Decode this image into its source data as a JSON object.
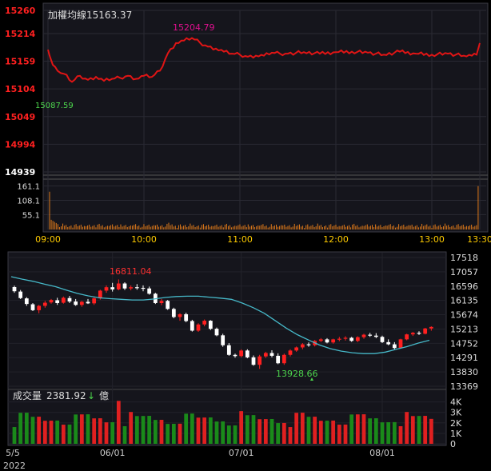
{
  "intraday": {
    "title": "加權均線",
    "value": "15163.37",
    "high_label": "15204.79",
    "low_label": "15087.59",
    "y_ticks": [
      "15260",
      "15214",
      "15159",
      "15104",
      "15049",
      "14994",
      "14939"
    ],
    "vol_ticks": [
      "161.1",
      "108.1",
      "55.1"
    ],
    "time_ticks": [
      "09:00",
      "10:00",
      "11:00",
      "12:00",
      "13:00",
      "13:30"
    ]
  },
  "daily": {
    "high_label": "16811.04",
    "low_label": "13928.66",
    "y_ticks": [
      "17518",
      "17057",
      "16596",
      "16135",
      "15674",
      "15213",
      "14752",
      "14291",
      "13830",
      "13369"
    ],
    "volume_label": "成交量",
    "volume_value": "2381.92",
    "volume_arrow": "↓",
    "volume_unit": "億",
    "vol_ticks": [
      "4K",
      "3K",
      "2K",
      "1K",
      "0"
    ],
    "date_ticks": [
      "5/5",
      "06/01",
      "07/01",
      "08/01"
    ],
    "year": "2022"
  },
  "colors": {
    "up": "#ff2020",
    "down": "#ffffff",
    "ma": "#46b8c8",
    "vol_up": "#e02020",
    "vol_down": "#1a8a1a",
    "high_label": "#e0108f",
    "low_label": "#4cd44c",
    "intraday_vol": "#e07a1a"
  },
  "chart_data": [
    {
      "type": "line",
      "title": "加權均線 15163.37",
      "x_range": [
        "09:00",
        "13:30"
      ],
      "ylim": [
        14939,
        15260
      ],
      "y_ticks": [
        15260,
        15214,
        15159,
        15104,
        15049,
        14994,
        14939
      ],
      "series": [
        {
          "x": [
            "09:00",
            "09:01",
            "09:03",
            "09:06",
            "09:10",
            "09:15",
            "09:20",
            "09:25",
            "09:30",
            "09:35",
            "09:40",
            "09:45",
            "09:50",
            "09:55",
            "10:00",
            "10:05",
            "10:10",
            "10:15",
            "10:20",
            "10:25",
            "10:30",
            "10:35",
            "10:40",
            "10:45",
            "10:50",
            "10:55",
            "11:00",
            "11:05",
            "11:10",
            "11:15",
            "11:20",
            "11:25",
            "11:30",
            "11:40",
            "11:50",
            "12:00",
            "12:10",
            "12:20",
            "12:30",
            "12:40",
            "12:50",
            "13:00",
            "13:10",
            "13:20",
            "13:25",
            "13:28",
            "13:30"
          ],
          "values": [
            15182,
            15170,
            15152,
            15140,
            15134,
            15118,
            15130,
            15122,
            15128,
            15120,
            15124,
            15126,
            15130,
            15124,
            15130,
            15128,
            15140,
            15175,
            15195,
            15200,
            15205,
            15196,
            15188,
            15184,
            15178,
            15174,
            15172,
            15168,
            15170,
            15170,
            15176,
            15174,
            15174,
            15177,
            15174,
            15177,
            15178,
            15176,
            15172,
            15178,
            15174,
            15172,
            15174,
            15170,
            15170,
            15172,
            15195
          ]
        }
      ],
      "volume": {
        "ticks": [
          161.1,
          108.1,
          55.1
        ],
        "note": "spikes at open (~140) and close (~161), otherwise ~5-20"
      }
    },
    {
      "type": "candlestick",
      "x_range": [
        "5/5",
        "08/01+"
      ],
      "ylim": [
        13369,
        17518
      ],
      "y_ticks": [
        17518,
        17057,
        16596,
        16135,
        15674,
        15213,
        14752,
        14291,
        13830,
        13369
      ],
      "annotations": [
        {
          "text": "16811.04",
          "kind": "high"
        },
        {
          "text": "13928.66",
          "kind": "low"
        }
      ],
      "ohlc": [
        [
          16565,
          16610,
          16380,
          16430
        ],
        [
          16420,
          16470,
          16180,
          16210
        ],
        [
          16200,
          16240,
          15960,
          16020
        ],
        [
          16010,
          16050,
          15790,
          15820
        ],
        [
          15820,
          15990,
          15720,
          15960
        ],
        [
          15960,
          16120,
          15900,
          16060
        ],
        [
          16070,
          16180,
          16030,
          16150
        ],
        [
          16140,
          16220,
          15990,
          16050
        ],
        [
          16060,
          16260,
          16030,
          16220
        ],
        [
          16210,
          16280,
          16050,
          16100
        ],
        [
          16100,
          16180,
          15960,
          15990
        ],
        [
          15990,
          16120,
          15930,
          16090
        ],
        [
          16090,
          16180,
          16020,
          16040
        ],
        [
          16040,
          16230,
          15990,
          16200
        ],
        [
          16200,
          16480,
          16160,
          16450
        ],
        [
          16450,
          16620,
          16380,
          16560
        ],
        [
          16560,
          16700,
          16420,
          16490
        ],
        [
          16490,
          16811,
          16460,
          16680
        ],
        [
          16680,
          16720,
          16470,
          16520
        ],
        [
          16520,
          16620,
          16460,
          16560
        ],
        [
          16560,
          16660,
          16480,
          16540
        ],
        [
          16540,
          16620,
          16430,
          16520
        ],
        [
          16520,
          16580,
          16320,
          16350
        ],
        [
          16350,
          16380,
          16020,
          16050
        ],
        [
          16050,
          16180,
          15980,
          16120
        ],
        [
          16120,
          16150,
          15830,
          15860
        ],
        [
          15860,
          15900,
          15560,
          15600
        ],
        [
          15600,
          15720,
          15480,
          15690
        ],
        [
          15690,
          15740,
          15430,
          15470
        ],
        [
          15470,
          15510,
          15130,
          15160
        ],
        [
          15160,
          15400,
          15120,
          15360
        ],
        [
          15360,
          15520,
          15300,
          15480
        ],
        [
          15480,
          15500,
          15180,
          15220
        ],
        [
          15220,
          15260,
          14980,
          15010
        ],
        [
          15010,
          15060,
          14640,
          14690
        ],
        [
          14690,
          14760,
          14350,
          14380
        ],
        [
          14380,
          14420,
          14290,
          14340
        ],
        [
          14340,
          14560,
          14300,
          14520
        ],
        [
          14520,
          14560,
          14270,
          14300
        ],
        [
          14300,
          14360,
          14030,
          14060
        ],
        [
          14060,
          14380,
          13929,
          14330
        ],
        [
          14330,
          14480,
          14280,
          14440
        ],
        [
          14440,
          14530,
          14300,
          14350
        ],
        [
          14350,
          14430,
          14080,
          14110
        ],
        [
          14110,
          14420,
          14060,
          14380
        ],
        [
          14380,
          14560,
          14330,
          14520
        ],
        [
          14520,
          14650,
          14480,
          14620
        ],
        [
          14620,
          14760,
          14560,
          14720
        ],
        [
          14720,
          14780,
          14640,
          14690
        ],
        [
          14690,
          14860,
          14650,
          14830
        ],
        [
          14830,
          14920,
          14790,
          14880
        ],
        [
          14880,
          14920,
          14750,
          14780
        ],
        [
          14780,
          14900,
          14740,
          14880
        ],
        [
          14880,
          14960,
          14820,
          14900
        ],
        [
          14900,
          14980,
          14840,
          14930
        ],
        [
          14930,
          14960,
          14800,
          14830
        ],
        [
          14830,
          14980,
          14790,
          14950
        ],
        [
          14950,
          15060,
          14900,
          15030
        ],
        [
          15030,
          15090,
          14960,
          15000
        ],
        [
          15000,
          15080,
          14920,
          14960
        ],
        [
          14960,
          15000,
          14760,
          14790
        ],
        [
          14790,
          14880,
          14690,
          14720
        ],
        [
          14720,
          14790,
          14560,
          14600
        ],
        [
          14600,
          14900,
          14580,
          14880
        ],
        [
          14880,
          15060,
          14850,
          15040
        ],
        [
          15040,
          15120,
          14990,
          15090
        ],
        [
          15090,
          15140,
          15020,
          15060
        ],
        [
          15060,
          15250,
          15040,
          15230
        ],
        [
          15230,
          15300,
          15160,
          15280
        ]
      ],
      "ma_line": [
        16900,
        16820,
        16750,
        16660,
        16580,
        16470,
        16360,
        16280,
        16220,
        16190,
        16170,
        16150,
        16150,
        16180,
        16230,
        16260,
        16270,
        16270,
        16240,
        16210,
        16170,
        16050,
        15900,
        15720,
        15480,
        15240,
        15030,
        14860,
        14700,
        14580,
        14500,
        14450,
        14420,
        14420,
        14470,
        14560,
        14650,
        14760,
        14850
      ],
      "volume_ticks": [
        "4K",
        "3K",
        "2K",
        "1K",
        "0"
      ],
      "volume_note": "daily turnover, mostly 1.5K-3K, spike ~4K near 5/25; last 2381.92億"
    }
  ]
}
